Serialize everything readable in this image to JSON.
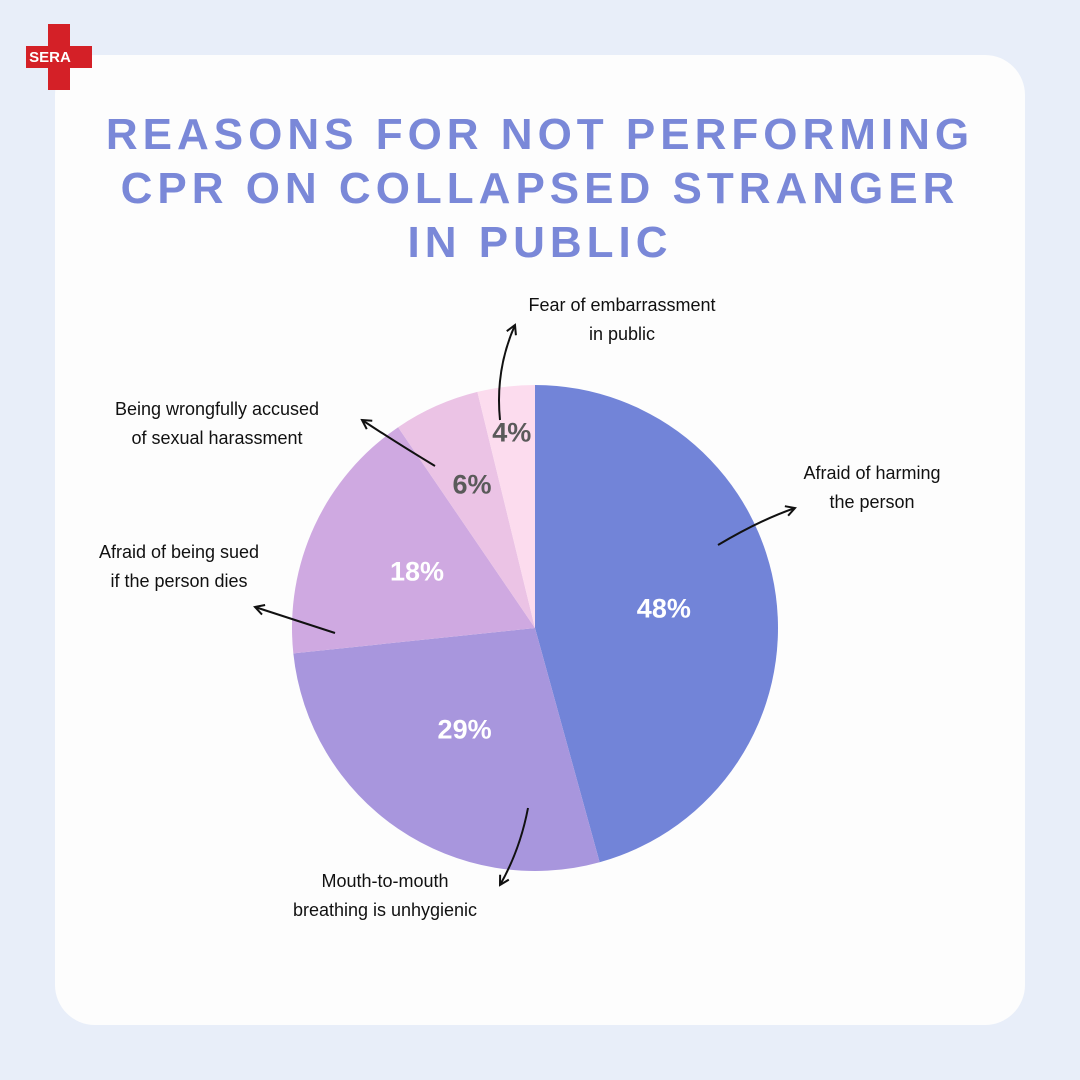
{
  "logo": "SERA",
  "chart_data": {
    "type": "pie",
    "title": "REASONS FOR NOT PERFORMING CPR ON COLLAPSED STRANGER IN PUBLIC",
    "categories": [
      "Afraid of harming the person",
      "Mouth-to-mouth breathing is unhygienic",
      "Afraid of being sued if the person dies",
      "Being wrongfully accused of sexual harassment",
      "Fear of embarrassment in public"
    ],
    "values": [
      48,
      29,
      18,
      6,
      4
    ],
    "value_labels": [
      "48%",
      "29%",
      "18%",
      "6%",
      "4%"
    ],
    "colors": [
      "#7284d8",
      "#a896dd",
      "#cfa9e1",
      "#ebc3e5",
      "#fcdcee"
    ]
  }
}
